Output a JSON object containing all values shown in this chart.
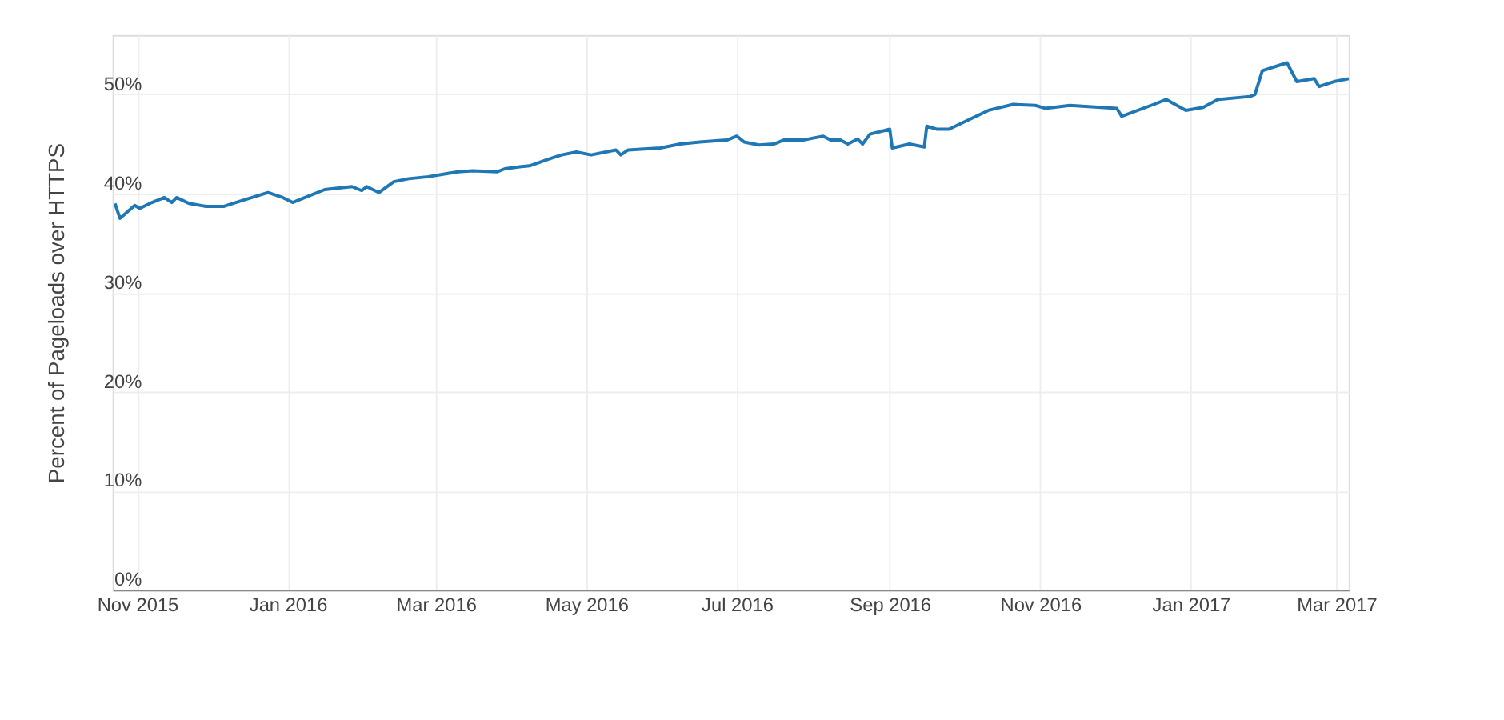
{
  "chart_data": {
    "type": "line",
    "ylabel": "Percent of Pageloads over HTTPS",
    "x": [
      "2015-10-23",
      "2015-10-25",
      "2015-10-31",
      "2015-11-02",
      "2015-11-07",
      "2015-11-12",
      "2015-11-15",
      "2015-11-17",
      "2015-11-22",
      "2015-11-29",
      "2015-12-06",
      "2015-12-11",
      "2015-12-24",
      "2015-12-30",
      "2016-01-03",
      "2016-01-07",
      "2016-01-16",
      "2016-01-27",
      "2016-01-31",
      "2016-02-02",
      "2016-02-07",
      "2016-02-13",
      "2016-02-19",
      "2016-02-27",
      "2016-03-05",
      "2016-03-10",
      "2016-03-16",
      "2016-03-26",
      "2016-03-29",
      "2016-04-04",
      "2016-04-08",
      "2016-04-16",
      "2016-04-21",
      "2016-04-27",
      "2016-05-03",
      "2016-05-13",
      "2016-05-15",
      "2016-05-18",
      "2016-05-31",
      "2016-06-08",
      "2016-06-16",
      "2016-06-27",
      "2016-07-01",
      "2016-07-04",
      "2016-07-10",
      "2016-07-16",
      "2016-07-20",
      "2016-07-28",
      "2016-08-05",
      "2016-08-08",
      "2016-08-12",
      "2016-08-15",
      "2016-08-19",
      "2016-08-21",
      "2016-08-24",
      "2016-09-01",
      "2016-09-02",
      "2016-09-09",
      "2016-09-15",
      "2016-09-16",
      "2016-09-20",
      "2016-09-25",
      "2016-10-11",
      "2016-10-21",
      "2016-10-30",
      "2016-11-03",
      "2016-11-13",
      "2016-12-02",
      "2016-12-04",
      "2016-12-17",
      "2016-12-22",
      "2016-12-30",
      "2017-01-06",
      "2017-01-12",
      "2017-01-25",
      "2017-01-27",
      "2017-01-30",
      "2017-02-09",
      "2017-02-13",
      "2017-02-20",
      "2017-02-22",
      "2017-02-28",
      "2017-03-06"
    ],
    "series": [
      {
        "color": "#1f77b4",
        "values": [
          39.0,
          37.5,
          38.8,
          38.5,
          39.1,
          39.6,
          39.1,
          39.6,
          39.0,
          38.7,
          38.7,
          39.1,
          40.1,
          39.6,
          39.1,
          39.5,
          40.4,
          40.7,
          40.3,
          40.7,
          40.1,
          41.2,
          41.5,
          41.7,
          42.0,
          42.2,
          42.3,
          42.2,
          42.5,
          42.7,
          42.8,
          43.5,
          43.9,
          44.2,
          43.9,
          44.4,
          43.9,
          44.4,
          44.6,
          45.0,
          45.2,
          45.4,
          45.8,
          45.2,
          44.9,
          45.0,
          45.4,
          45.4,
          45.8,
          45.4,
          45.4,
          45.0,
          45.5,
          45.0,
          46.0,
          46.5,
          44.6,
          45.0,
          44.7,
          46.8,
          46.5,
          46.5,
          48.4,
          49.0,
          48.9,
          48.6,
          48.9,
          48.6,
          47.8,
          49.0,
          49.5,
          48.4,
          48.7,
          49.5,
          49.8,
          50.0,
          52.4,
          53.2,
          51.3,
          51.6,
          50.8,
          51.3,
          51.6
        ]
      }
    ],
    "xlim": [
      "2015-10-22",
      "2017-03-06"
    ],
    "xticks": [
      {
        "value": "2015-11-01",
        "label": "Nov 2015"
      },
      {
        "value": "2016-01-01",
        "label": "Jan 2016"
      },
      {
        "value": "2016-03-01",
        "label": "Mar 2016"
      },
      {
        "value": "2016-05-01",
        "label": "May 2016"
      },
      {
        "value": "2016-07-01",
        "label": "Jul 2016"
      },
      {
        "value": "2016-09-01",
        "label": "Sep 2016"
      },
      {
        "value": "2016-11-01",
        "label": "Nov 2016"
      },
      {
        "value": "2017-01-01",
        "label": "Jan 2017"
      },
      {
        "value": "2017-03-01",
        "label": "Mar 2017"
      }
    ],
    "ylim": [
      0,
      56
    ],
    "yticks": [
      {
        "value": 0,
        "label": "0%"
      },
      {
        "value": 10,
        "label": "10%"
      },
      {
        "value": 20,
        "label": "20%"
      },
      {
        "value": 30,
        "label": "30%"
      },
      {
        "value": 40,
        "label": "40%"
      },
      {
        "value": 50,
        "label": "50%"
      }
    ],
    "grid": true
  }
}
